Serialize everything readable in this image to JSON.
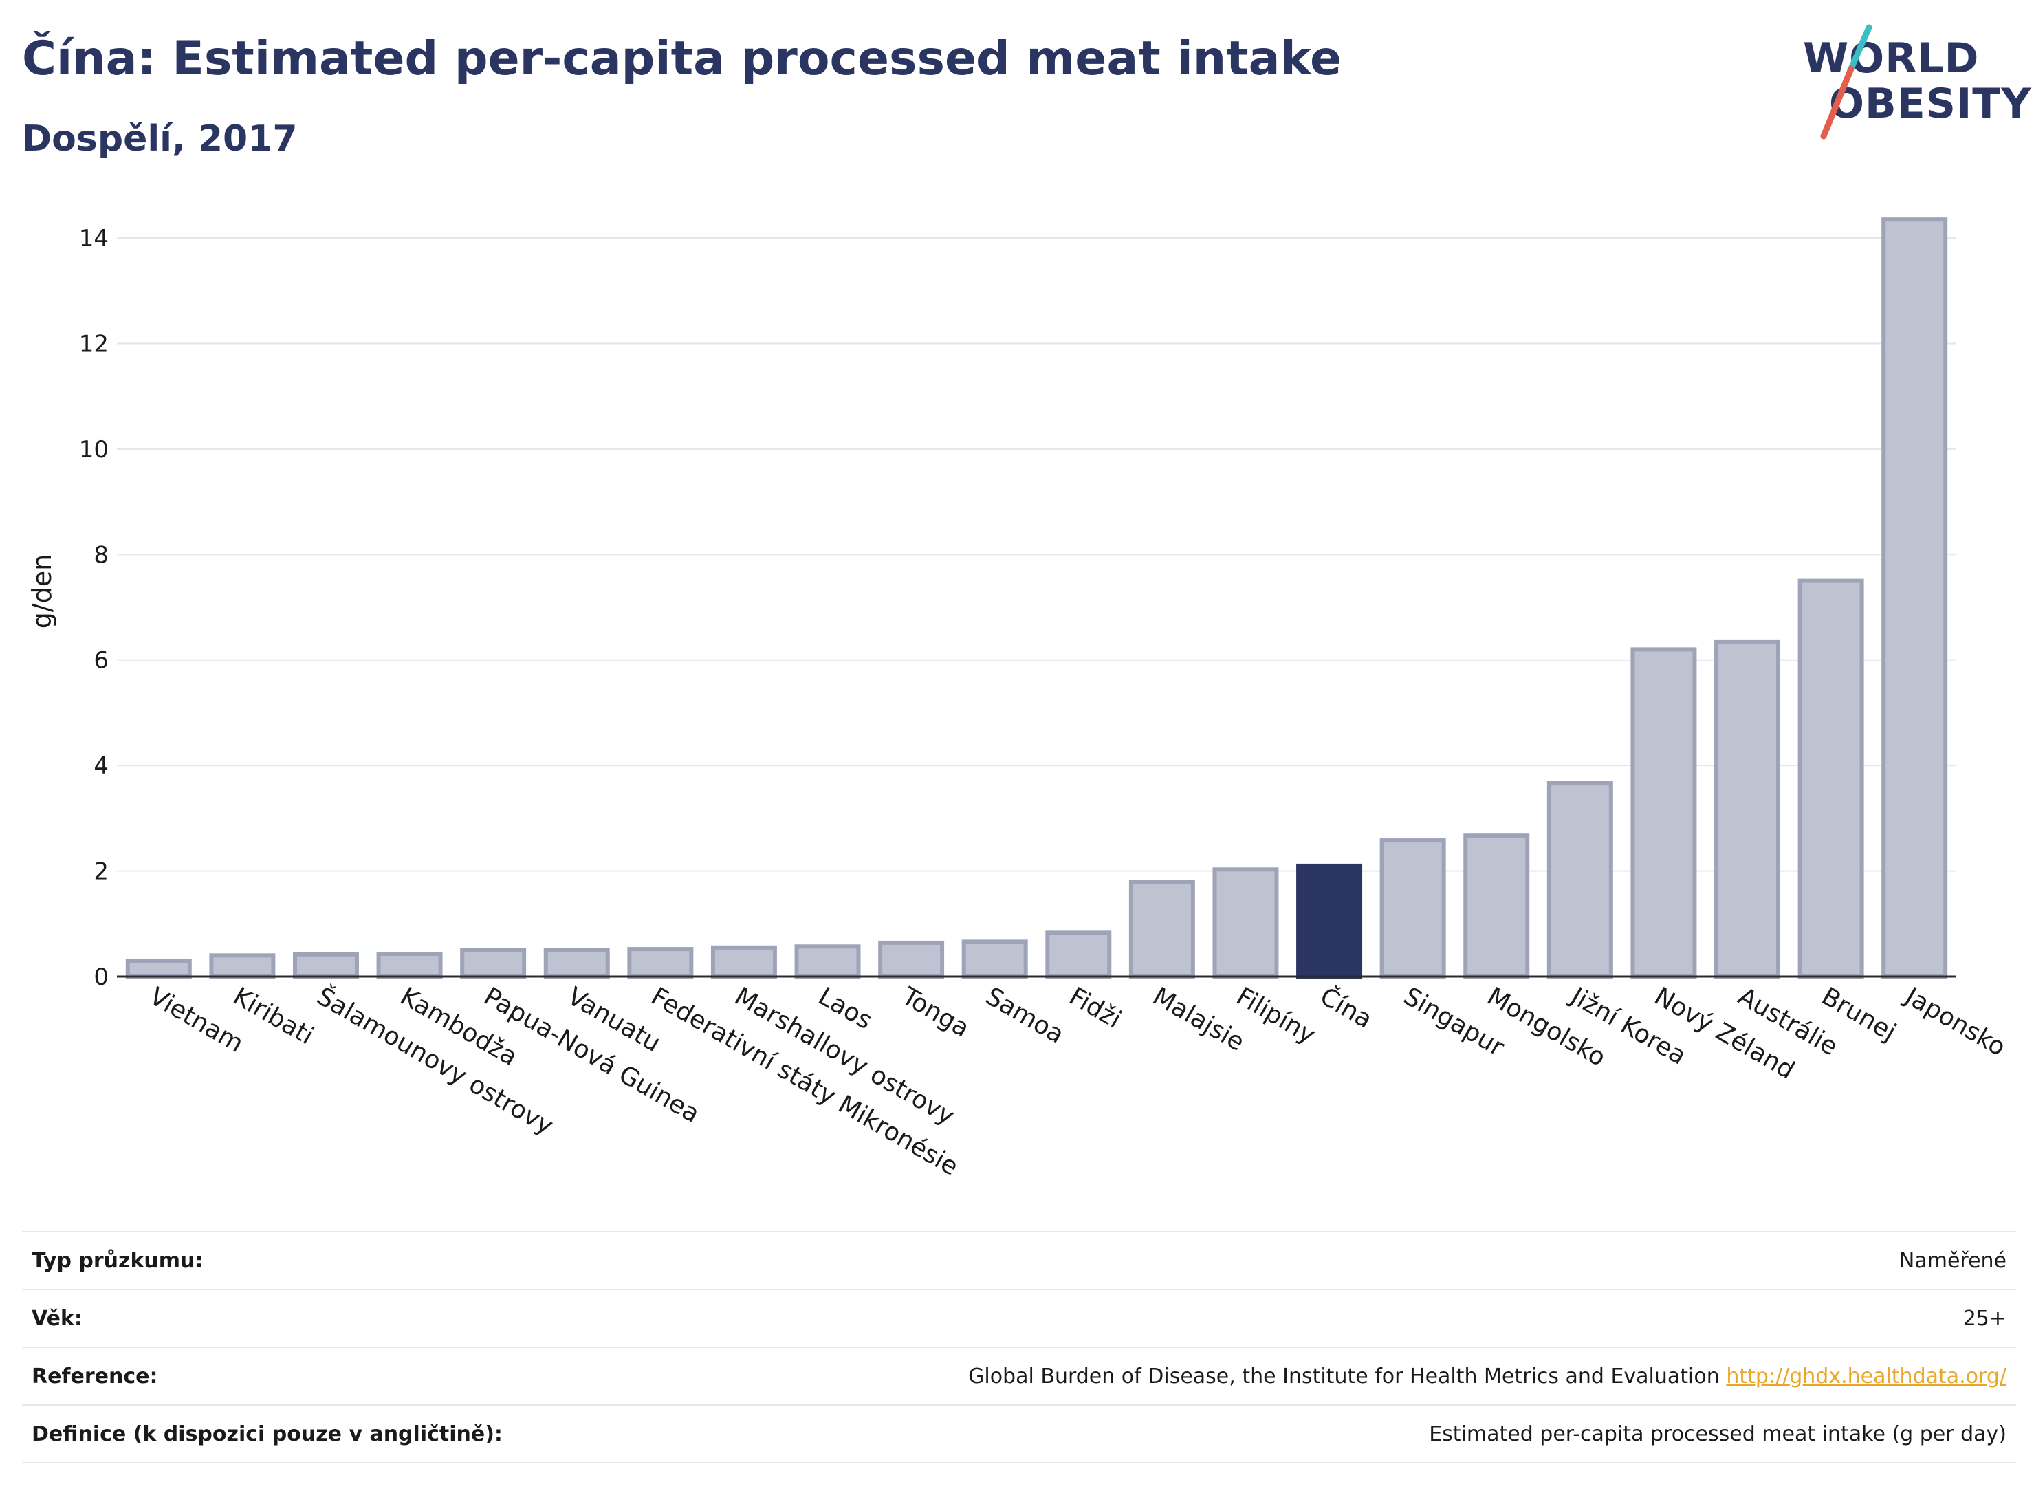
{
  "header": {
    "title": "Čína: Estimated per-capita processed meat intake",
    "subtitle": "Dospělí, 2017",
    "logo_line1": "WORLD",
    "logo_line2": "OBESITY"
  },
  "colors": {
    "bar": "#bfc2d1",
    "bar_border": "#9ea3b8",
    "highlight": "#2a3562",
    "grid": "#e4e6ec",
    "axis": "#2a2a2a",
    "logo_teal": "#3bbfc4",
    "logo_red": "#e35e4c"
  },
  "chart_data": {
    "type": "bar",
    "title": "",
    "xlabel": "",
    "ylabel": "g/den",
    "ylim": [
      0,
      14.6
    ],
    "yticks": [
      0,
      2,
      4,
      6,
      8,
      10,
      12,
      14
    ],
    "grid": true,
    "highlight_category": "Čína",
    "categories": [
      "Vietnam",
      "Kiribati",
      "Šalamounovy ostrovy",
      "Kambodža",
      "Papua-Nová Guinea",
      "Vanuatu",
      "Federativní státy Mikronésie",
      "Marshallovy ostrovy",
      "Laos",
      "Tonga",
      "Samoa",
      "Fidži",
      "Malajsie",
      "Filipíny",
      "Čína",
      "Singapur",
      "Mongolsko",
      "Jižní Korea",
      "Nový Zéland",
      "Austrálie",
      "Brunej",
      "Japonsko"
    ],
    "values": [
      0.3,
      0.4,
      0.42,
      0.43,
      0.5,
      0.5,
      0.52,
      0.55,
      0.57,
      0.64,
      0.66,
      0.83,
      1.79,
      2.03,
      2.1,
      2.58,
      2.67,
      3.67,
      6.2,
      6.35,
      7.5,
      14.35
    ]
  },
  "info": {
    "rows": [
      {
        "label": "Typ průzkumu:",
        "value": "Naměřené"
      },
      {
        "label": "Věk:",
        "value": "25+"
      },
      {
        "label": "Reference:",
        "value": "Global Burden of Disease, the Institute for Health Metrics and Evaluation",
        "link": "http://ghdx.healthdata.org/"
      },
      {
        "label": "Definice (k dispozici pouze v angličtině):",
        "value": "Estimated per-capita processed meat intake (g per day)"
      }
    ]
  }
}
